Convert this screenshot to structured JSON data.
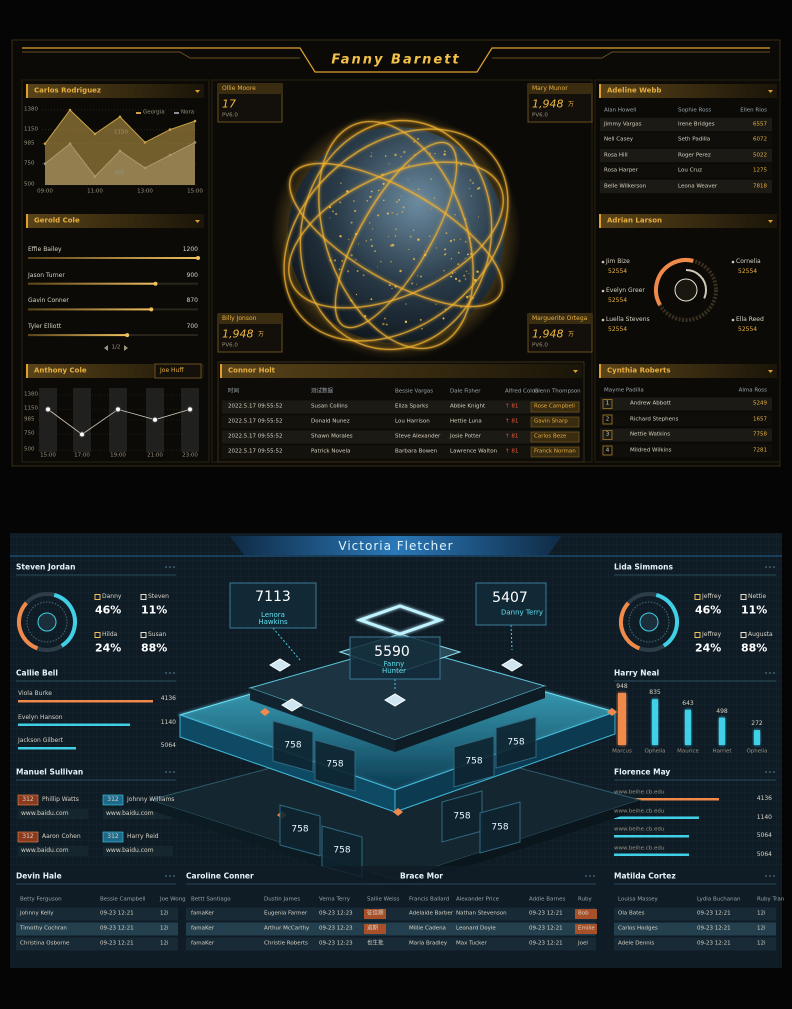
{
  "top": {
    "title": "Fanny Barnett",
    "carlos": {
      "title": "Carlos Rodriguez",
      "ylim": [
        500,
        1380
      ],
      "yticks": [
        1380,
        1150,
        985,
        750,
        500
      ],
      "categories": [
        "09:00",
        null,
        "11:00",
        null,
        "13:00",
        null,
        "15:00"
      ],
      "series": [
        {
          "name": "Georgia",
          "color": "#c9a24a",
          "values": [
            985,
            1380,
            1100,
            1300,
            1000,
            1150,
            1250
          ]
        },
        {
          "name": "Nora",
          "color": "#8a8f96",
          "values": [
            750,
            985,
            600,
            900,
            700,
            850,
            1000
          ]
        }
      ],
      "annotations": [
        "1150",
        "985"
      ]
    },
    "gerold": {
      "title": "Gerold Cole",
      "items": [
        {
          "name": "Effie Bailey",
          "value": 1200
        },
        {
          "name": "Jason Turner",
          "value": 900
        },
        {
          "name": "Gavin Conner",
          "value": 870
        },
        {
          "name": "Tyler Elliott",
          "value": 700
        }
      ],
      "pager": "1/2"
    },
    "anthony": {
      "title": "Anthony Cole",
      "select": "Joe Huff",
      "ylim": [
        500,
        1380
      ],
      "yticks": [
        1380,
        1150,
        985,
        750,
        500
      ],
      "categories": [
        "15:00",
        "17:00",
        "19:00",
        "21:00",
        "23:00"
      ],
      "values": [
        1150,
        750,
        1150,
        985,
        1150
      ]
    },
    "stats": [
      {
        "name": "Ollie Moore",
        "value": "17",
        "sub": "PV6.0"
      },
      {
        "name": "Mary Munor",
        "value": "1,948",
        "unit": "万",
        "sub": "PV6.0"
      },
      {
        "name": "Billy Jonson",
        "value": "1,948",
        "unit": "万",
        "sub": "PV6.0"
      },
      {
        "name": "Marguerite Ortega",
        "value": "1,948",
        "unit": "万",
        "sub": "PV6.0"
      }
    ],
    "connor": {
      "title": "Connor Holt",
      "columns": [
        "时间",
        "测试数据",
        "Bessie Vargas",
        "Dale Fisher",
        "Alfred Colon",
        "Glenn Thompson"
      ],
      "rows": [
        [
          "2022.5.17 09:55:52",
          "Susan Collins",
          "Eliza Sparks",
          "Abbie Knight",
          "↑ 81",
          "Rose Campbell"
        ],
        [
          "2022.5.17 09:55:52",
          "Donald Nunez",
          "Lou Harrison",
          "Hettie Luna",
          "↑ 81",
          "Gavin Sharp"
        ],
        [
          "2022.5.17 09:55:52",
          "Shawn Morales",
          "Steve Alexander",
          "Josie Potter",
          "↑ 81",
          "Carlos Beze"
        ],
        [
          "2022.5.17 09:55:52",
          "Patrick Novela",
          "Barbara Bowen",
          "Lawrence Walton",
          "↑ 81",
          "Franck Norman"
        ]
      ]
    },
    "adeline": {
      "title": "Adeline Webb",
      "columns": [
        "Alan Howell",
        "Sophie Ross",
        "Ellen Rios"
      ],
      "rows": [
        [
          "Jimmy Vargas",
          "Irene Bridges",
          "6557"
        ],
        [
          "Nell Casey",
          "Seth Padilla",
          "6072"
        ],
        [
          "Rosa Hill",
          "Roger Perez",
          "5022"
        ],
        [
          "Rosa Harper",
          "Lou Cruz",
          "1275"
        ],
        [
          "Belle Wilkerson",
          "Leona Weaver",
          "7818"
        ]
      ]
    },
    "adrian": {
      "title": "Adrian Larson",
      "items": [
        {
          "name": "Jim Bize",
          "value": "52554"
        },
        {
          "name": "Evelyn Greer",
          "value": "52554"
        },
        {
          "name": "Luella Stevens",
          "value": "52554"
        },
        {
          "name": "Cornelia",
          "value": "52554"
        },
        {
          "name": "Ella Reed",
          "value": "52554"
        }
      ]
    },
    "cynthia": {
      "title": "Cynthia Roberts",
      "columns": [
        "Mayme Padilla",
        "Alma Ross"
      ],
      "rows": [
        [
          "1",
          "Andrew Abbott",
          "5249"
        ],
        [
          "2",
          "Richard Stephens",
          "1657"
        ],
        [
          "3",
          "Nettie Watkins",
          "7758"
        ],
        [
          "4",
          "Mildred Wilkins",
          "7281"
        ]
      ]
    }
  },
  "bottom": {
    "title": "Victoria Fletcher",
    "steven": {
      "title": "Steven Jordan",
      "items": [
        {
          "name": "Danny",
          "value": "46%"
        },
        {
          "name": "Steven",
          "value": "11%"
        },
        {
          "name": "Hilda",
          "value": "24%"
        },
        {
          "name": "Susan",
          "value": "88%"
        }
      ]
    },
    "callie": {
      "title": "Callie Bell",
      "items": [
        {
          "name": "Viola Burke",
          "value": "4136"
        },
        {
          "name": "Evelyn Hanson",
          "value": "1140"
        },
        {
          "name": "Jackson Gilbert",
          "value": "5064"
        }
      ]
    },
    "manuel": {
      "title": "Manuel Sullivan",
      "cards": [
        {
          "badge": "312",
          "name": "Phillip Watts",
          "url": "www.baidu.com"
        },
        {
          "badge": "312",
          "name": "Johnny Williams",
          "url": "www.baidu.com"
        },
        {
          "badge": "312",
          "name": "Aaron Cohen",
          "url": "www.baidu.com"
        },
        {
          "badge": "312",
          "name": "Harry Reid",
          "url": "www.baidu.com"
        }
      ]
    },
    "hub": {
      "stats": [
        {
          "value": "7113",
          "name": "Lenora Hawkins"
        },
        {
          "value": "5407",
          "name": "Danny Terry"
        },
        {
          "value": "5590",
          "name": "Fanny Hunter"
        }
      ],
      "panels": [
        "758",
        "758",
        "758",
        "758",
        "758",
        "758",
        "758",
        "758"
      ]
    },
    "lida": {
      "title": "Lida Simmons",
      "items": [
        {
          "name": "Jeffrey",
          "value": "46%"
        },
        {
          "name": "Nettie",
          "value": "11%"
        },
        {
          "name": "Jeffrey",
          "value": "24%"
        },
        {
          "name": "Augusta",
          "value": "88%"
        }
      ]
    },
    "harry": {
      "title": "Harry Neal",
      "categories": [
        "Marcus",
        "Ophelia",
        "Maurice",
        "Harriet",
        "Ophelia"
      ],
      "values": [
        948,
        835,
        643,
        498,
        272
      ],
      "colors": [
        "#f08a4b",
        "#3fd0e8",
        "#3fd0e8",
        "#3fd0e8",
        "#3fd0e8"
      ]
    },
    "florence": {
      "title": "Florence May",
      "items": [
        {
          "name": "www.beihe.cb.edu",
          "value": "4136"
        },
        {
          "name": "www.beihe.cb.edu",
          "value": "1140"
        },
        {
          "name": "www.beihe.cb.edu",
          "value": "5064"
        },
        {
          "name": "www.beihe.cb.edu",
          "value": "5064"
        }
      ]
    },
    "devin": {
      "title": "Devin Hale",
      "columns": [
        "Betty Ferguson",
        "Bessie Campbell",
        "Joe Wong"
      ],
      "rows": [
        [
          "Johnny Kelly",
          "09-23 12:21",
          "12i"
        ],
        [
          "Timothy Cochran",
          "09-23 12:21",
          "12i"
        ],
        [
          "Christina Osborne",
          "09-23 12:21",
          "12i"
        ]
      ]
    },
    "caroline": {
      "title": "Caroline Conner",
      "tag": "Brace Mor",
      "columns": [
        "Bettt Santiago",
        "Dustin James",
        "Verna Terry",
        "Sallie Weiss",
        "Francis Ballard",
        "Alexander Price",
        "Addie Barnes",
        "Ruby"
      ],
      "rows": [
        [
          "famaKer",
          "Eugenia Farmer",
          "09-23 12:23",
          "征信期",
          "Adelaide Barber",
          "Nathan Stevenson",
          "09-23 12:21",
          "Bob"
        ],
        [
          "famaKer",
          "Arthur McCarthy",
          "09-23 12:23",
          "逾期",
          "Millie Cadena",
          "Leonard Doyle",
          "09-23 12:21",
          "Emilie"
        ],
        [
          "famaKer",
          "Christie Roberts",
          "09-23 12:23",
          "也生批",
          "Maria Bradley",
          "Max Tucker",
          "09-23 12:21",
          "Joel"
        ]
      ]
    },
    "matilda": {
      "title": "Matilda Cortez",
      "columns": [
        "Louisa Massey",
        "Lydia Buchanan",
        "Ruby Tran"
      ],
      "rows": [
        [
          "Ola Bates",
          "09-23 12:21",
          "12i"
        ],
        [
          "Carlos Hodges",
          "09-23 12:21",
          "12i"
        ],
        [
          "Adele Dennis",
          "09-23 12:21",
          "12i"
        ]
      ]
    }
  }
}
